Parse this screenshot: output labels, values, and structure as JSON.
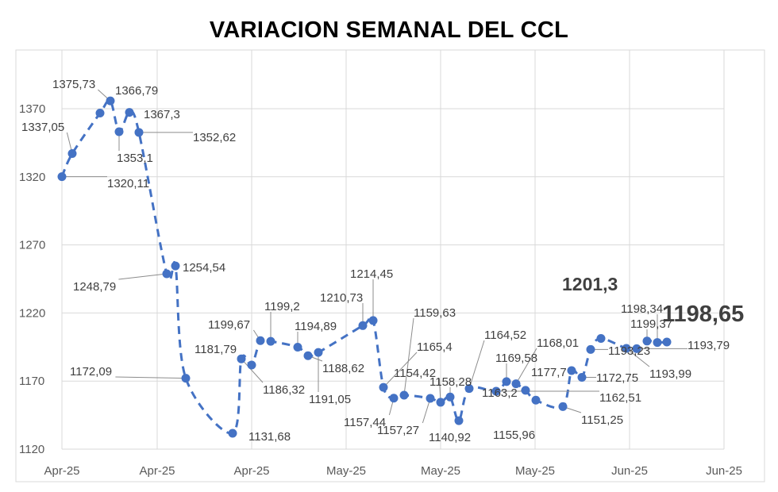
{
  "chart_data": {
    "type": "line",
    "title": "VARIACION SEMANAL DEL CCL",
    "xlabel": "",
    "ylabel": "",
    "ylim": [
      1120,
      1395
    ],
    "y_ticks": [
      1120,
      1170,
      1220,
      1270,
      1320,
      1370
    ],
    "x_tick_labels": [
      "Apr-25",
      "Apr-25",
      "Apr-25",
      "May-25",
      "May-25",
      "May-25",
      "Jun-25",
      "Jun-25"
    ],
    "grid": true,
    "legend": "none",
    "line_color": "#4472c4",
    "series": [
      {
        "labels": [
          "1320,11",
          "1337,05",
          "1366,79",
          "1375,73",
          "1353,1",
          "1367,3",
          "1352,62",
          "1248,79",
          "1254,54",
          "1172,09",
          "1131,68",
          "1186,32",
          "1181,79",
          "1199,67",
          "1199,2",
          "1194,89",
          "1188,62",
          "1191,05",
          "1210,73",
          "1214,45",
          "1165,4",
          "1157,44",
          "1159,63",
          "1157,27",
          "1154,42",
          "1158,28",
          "1140,92",
          "1164,52",
          "1162,51",
          "1169,58",
          "1168,01",
          "1163,2",
          "1155,96",
          "1151,25",
          "1177,7",
          "1172,75",
          "1193,23",
          "1201,3",
          "1193,99",
          "1193,79",
          "1199,37",
          "1198,34",
          "1198,65"
        ],
        "values": [
          1320.11,
          1337.05,
          1366.79,
          1375.73,
          1353.1,
          1367.3,
          1352.62,
          1248.79,
          1254.54,
          1172.09,
          1131.68,
          1186.32,
          1181.79,
          1199.67,
          1199.2,
          1194.89,
          1188.62,
          1191.05,
          1210.73,
          1214.45,
          1165.4,
          1157.44,
          1159.63,
          1157.27,
          1154.42,
          1158.28,
          1140.92,
          1164.52,
          1162.51,
          1169.58,
          1168.01,
          1163.2,
          1155.96,
          1151.25,
          1177.7,
          1172.75,
          1193.23,
          1201.3,
          1193.99,
          1193.79,
          1199.37,
          1198.34,
          1198.65
        ]
      }
    ]
  }
}
